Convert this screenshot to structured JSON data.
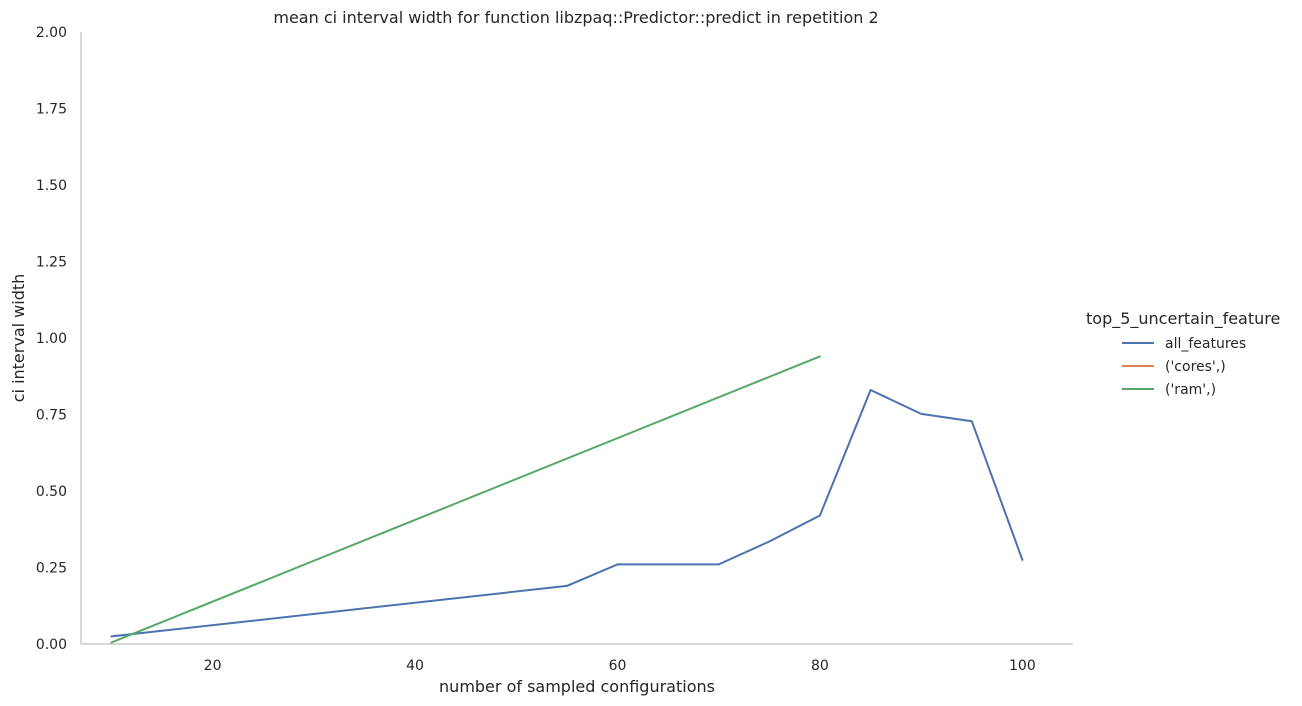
{
  "chart_data": {
    "type": "line",
    "title": "mean ci interval width for function libzpaq::Predictor::predict in repetition 2",
    "xlabel": "number of sampled configurations",
    "ylabel": "ci interval width",
    "xlim": [
      7,
      105
    ],
    "ylim": [
      0,
      2.0
    ],
    "x_ticks": [
      20,
      40,
      60,
      80,
      100
    ],
    "x_tick_labels": [
      "20",
      "40",
      "60",
      "80",
      "100"
    ],
    "y_ticks": [
      0,
      0.25,
      0.5,
      0.75,
      1.0,
      1.25,
      1.5,
      1.75,
      2.0
    ],
    "y_tick_labels": [
      "0.00",
      "0.25",
      "0.50",
      "0.75",
      "1.00",
      "1.25",
      "1.50",
      "1.75",
      "2.00"
    ],
    "grid": false,
    "legend": {
      "title": "top_5_uncertain_feature",
      "placement": "right",
      "entries": [
        "all_features",
        "('cores',)",
        "('ram',)"
      ]
    },
    "series": [
      {
        "name": "all_features",
        "color": "#4c72b0",
        "x": [
          10,
          55,
          60,
          65,
          70,
          75,
          80,
          85,
          90,
          95,
          100
        ],
        "y": [
          0.025,
          0.19,
          0.26,
          0.26,
          0.26,
          0.335,
          0.42,
          0.83,
          0.752,
          0.728,
          0.275
        ]
      },
      {
        "name": "('cores',)",
        "color": "#dd8452",
        "x": [],
        "y": []
      },
      {
        "name": "('ram',)",
        "color": "#55a868",
        "x": [
          10,
          80
        ],
        "y": [
          0.005,
          0.94
        ]
      }
    ]
  }
}
